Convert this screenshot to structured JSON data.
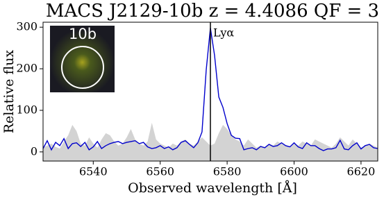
{
  "chart_data": {
    "type": "line",
    "title": "MACS J2129-10b z = 4.4086 QF = 3",
    "xlabel": "Observed wavelength [Å]",
    "ylabel": "Relative flux",
    "x": [
      6525,
      6526.25,
      6527.5,
      6528.75,
      6530,
      6531.25,
      6532.5,
      6533.75,
      6535,
      6536.25,
      6537.5,
      6538.75,
      6540,
      6541.25,
      6542.5,
      6543.75,
      6545,
      6546.25,
      6547.5,
      6548.75,
      6550,
      6551.25,
      6552.5,
      6553.75,
      6555,
      6556.25,
      6557.5,
      6558.75,
      6560,
      6561.25,
      6562.5,
      6563.75,
      6565,
      6566.25,
      6567.5,
      6568.75,
      6570,
      6571.25,
      6572.5,
      6573.75,
      6575,
      6576.25,
      6577.5,
      6578.75,
      6580,
      6581.25,
      6582.5,
      6583.75,
      6585,
      6586.25,
      6587.5,
      6588.75,
      6590,
      6591.25,
      6592.5,
      6593.75,
      6595,
      6596.25,
      6597.5,
      6598.75,
      6600,
      6601.25,
      6602.5,
      6603.75,
      6605,
      6606.25,
      6607.5,
      6608.75,
      6610,
      6611.25,
      6612.5,
      6613.75,
      6615,
      6616.25,
      6617.5,
      6618.75,
      6620,
      6621.25,
      6622.5,
      6623.75,
      6625
    ],
    "series": [
      {
        "style": "area",
        "color": "#d3d3d3",
        "values": [
          10,
          15,
          20,
          12,
          8,
          25,
          40,
          65,
          50,
          20,
          15,
          35,
          20,
          10,
          30,
          45,
          40,
          25,
          15,
          20,
          35,
          55,
          30,
          20,
          15,
          25,
          70,
          30,
          20,
          15,
          10,
          20,
          15,
          25,
          30,
          20,
          15,
          25,
          35,
          25,
          15,
          20,
          45,
          65,
          55,
          40,
          30,
          25,
          15,
          30,
          20,
          10,
          15,
          10,
          20,
          15,
          25,
          20,
          15,
          10,
          20,
          15,
          25,
          20,
          15,
          30,
          25,
          20,
          15,
          10,
          20,
          35,
          25,
          15,
          30,
          20,
          10,
          15,
          20,
          15,
          10
        ]
      },
      {
        "style": "line",
        "color": "#0000cc",
        "values": [
          8,
          27,
          5,
          23,
          15,
          32,
          8,
          20,
          22,
          13,
          23,
          5,
          12,
          25,
          8,
          15,
          20,
          23,
          25,
          20,
          23,
          25,
          27,
          20,
          23,
          12,
          8,
          10,
          15,
          8,
          12,
          5,
          10,
          23,
          27,
          18,
          10,
          22,
          48,
          198,
          298,
          232,
          132,
          107,
          68,
          40,
          33,
          32,
          5,
          8,
          10,
          5,
          13,
          10,
          18,
          13,
          15,
          22,
          15,
          12,
          22,
          12,
          8,
          22,
          15,
          15,
          8,
          3,
          7,
          7,
          10,
          28,
          7,
          5,
          15,
          22,
          7,
          15,
          18,
          10,
          8
        ]
      }
    ],
    "vline": {
      "x": 6575,
      "label": "Lyα",
      "color": "#000000"
    },
    "inset": {
      "label": "10b"
    },
    "xlim": [
      6525,
      6625
    ],
    "xticks": [
      6540,
      6560,
      6580,
      6600,
      6620
    ],
    "ylim": [
      -22,
      312
    ],
    "yticks": [
      0,
      100,
      200,
      300
    ],
    "grid": false
  }
}
